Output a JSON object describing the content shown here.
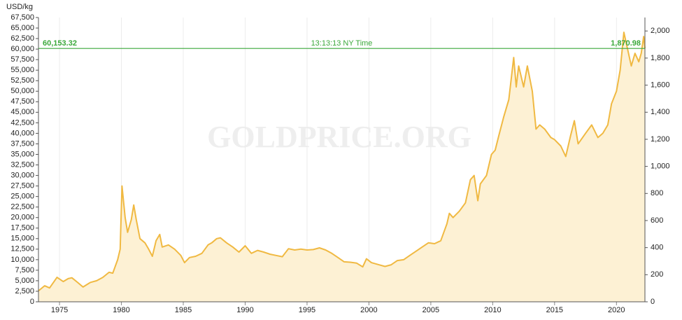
{
  "chart_data": {
    "type": "area",
    "y_label": "USD/kg",
    "watermark": "GOLDPRICE.ORG",
    "line_color": "#f0b942",
    "fill_color": "#fdf1d4",
    "grid": "x",
    "xlim": [
      1973.3,
      2022.3
    ],
    "xticks": [
      1975,
      1980,
      1985,
      1990,
      1995,
      2000,
      2005,
      2010,
      2015,
      2020
    ],
    "ylim": [
      0,
      67500
    ],
    "yticks": [
      0,
      {
        "value": 2500,
        "label": "2,500"
      },
      {
        "value": 5000,
        "label": "5,000"
      },
      {
        "value": 7500,
        "label": "7,500"
      },
      {
        "value": 10000,
        "label": "10,000"
      },
      {
        "value": 12500,
        "label": "12,500"
      },
      {
        "value": 15000,
        "label": "15,000"
      },
      {
        "value": 17500,
        "label": "17,500"
      },
      {
        "value": 20000,
        "label": "20,000"
      },
      {
        "value": 22500,
        "label": "22,500"
      },
      {
        "value": 25000,
        "label": "25,000"
      },
      {
        "value": 27500,
        "label": "27,500"
      },
      {
        "value": 30000,
        "label": "30,000"
      },
      {
        "value": 32500,
        "label": "32,500"
      },
      {
        "value": 35000,
        "label": "35,000"
      },
      {
        "value": 37500,
        "label": "37,500"
      },
      {
        "value": 40000,
        "label": "40,000"
      },
      {
        "value": 42500,
        "label": "42,500"
      },
      {
        "value": 45000,
        "label": "45,000"
      },
      {
        "value": 47500,
        "label": "47,500"
      },
      {
        "value": 50000,
        "label": "50,000"
      },
      {
        "value": 52500,
        "label": "52,500"
      },
      {
        "value": 55000,
        "label": "55,000"
      },
      {
        "value": 57500,
        "label": "57,500"
      },
      {
        "value": 60000,
        "label": "60,000"
      },
      {
        "value": 62500,
        "label": "62,500"
      },
      {
        "value": 65000,
        "label": "65,000"
      },
      {
        "value": 67500,
        "label": "67,500"
      }
    ],
    "y2lim": [
      0,
      2099.5
    ],
    "y2ticks": [
      0,
      200,
      400,
      600,
      800,
      {
        "value": 1000,
        "label": "1,000"
      },
      {
        "value": 1200,
        "label": "1,200"
      },
      {
        "value": 1400,
        "label": "1,400"
      },
      {
        "value": 1600,
        "label": "1,600"
      },
      {
        "value": 1800,
        "label": "1,800"
      },
      {
        "value": 2000,
        "label": "2,000"
      }
    ],
    "current": {
      "value": 60153.32,
      "label": "60,153.32",
      "y2_value": 1870.98,
      "y2_label": "1,870.98",
      "time": "13:13:13 NY Time",
      "color": "#3aa83a"
    },
    "x": [
      1973.3,
      1973.8,
      1974.2,
      1974.8,
      1975.3,
      1975.7,
      1976.0,
      1976.5,
      1976.9,
      1977.5,
      1978.0,
      1978.5,
      1979.0,
      1979.3,
      1979.7,
      1979.9,
      1980.05,
      1980.3,
      1980.5,
      1980.8,
      1981.0,
      1981.2,
      1981.5,
      1981.9,
      1982.2,
      1982.5,
      1982.8,
      1983.1,
      1983.3,
      1983.8,
      1984.3,
      1984.8,
      1985.1,
      1985.5,
      1986.0,
      1986.5,
      1987.0,
      1987.3,
      1987.7,
      1988.0,
      1988.5,
      1989.0,
      1989.5,
      1990.0,
      1990.5,
      1991.0,
      1991.5,
      1992.0,
      1992.5,
      1993.0,
      1993.5,
      1994.0,
      1994.5,
      1995.0,
      1995.5,
      1996.0,
      1996.5,
      1997.0,
      1997.5,
      1998.0,
      1998.5,
      1999.0,
      1999.5,
      1999.8,
      2000.2,
      2000.8,
      2001.3,
      2001.8,
      2002.3,
      2002.8,
      2003.3,
      2003.8,
      2004.3,
      2004.8,
      2005.3,
      2005.8,
      2006.3,
      2006.5,
      2006.8,
      2007.3,
      2007.8,
      2008.2,
      2008.5,
      2008.8,
      2009.0,
      2009.5,
      2009.9,
      2010.2,
      2010.5,
      2010.9,
      2011.3,
      2011.7,
      2011.9,
      2012.1,
      2012.5,
      2012.8,
      2013.2,
      2013.5,
      2013.8,
      2014.2,
      2014.7,
      2015.0,
      2015.5,
      2015.9,
      2016.3,
      2016.6,
      2016.9,
      2017.5,
      2018.0,
      2018.5,
      2018.9,
      2019.3,
      2019.6,
      2020.0,
      2020.3,
      2020.6,
      2020.9,
      2021.2,
      2021.5,
      2021.8,
      2022.0,
      2022.2,
      2022.3
    ],
    "values": [
      2600,
      3800,
      3300,
      5800,
      4800,
      5500,
      5700,
      4500,
      3500,
      4600,
      5000,
      5800,
      7000,
      6800,
      10000,
      12500,
      27500,
      20000,
      16500,
      19500,
      23000,
      19500,
      15000,
      14000,
      12500,
      10800,
      14500,
      16000,
      13000,
      13500,
      12500,
      11000,
      9300,
      10500,
      10800,
      11500,
      13500,
      14000,
      15000,
      15200,
      14000,
      13000,
      11800,
      13300,
      11500,
      12200,
      11800,
      11300,
      11000,
      10700,
      12600,
      12300,
      12500,
      12300,
      12400,
      12800,
      12300,
      11500,
      10500,
      9500,
      9400,
      9200,
      8300,
      10200,
      9300,
      8800,
      8400,
      8800,
      9800,
      10000,
      11000,
      12000,
      13000,
      14000,
      13800,
      14500,
      18500,
      21000,
      20000,
      21500,
      23500,
      29000,
      30000,
      24000,
      28000,
      30000,
      35000,
      36000,
      39500,
      44000,
      48000,
      58000,
      51000,
      56000,
      51000,
      56000,
      50000,
      41000,
      42000,
      41000,
      39000,
      38500,
      37000,
      34500,
      39500,
      43000,
      37500,
      40000,
      42000,
      39000,
      40000,
      42000,
      47000,
      50000,
      55000,
      64000,
      60000,
      56000,
      59000,
      57000,
      59000,
      63000,
      60153
    ]
  }
}
